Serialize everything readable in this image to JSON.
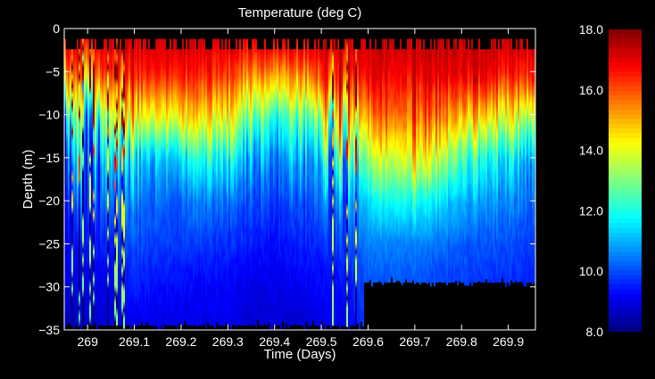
{
  "chart_data": {
    "type": "heatmap",
    "title": "Temperature (deg C)",
    "xlabel": "Time (Days)",
    "ylabel": "Depth (m)",
    "xlim": [
      268.95,
      269.958
    ],
    "ylim": [
      -35,
      0
    ],
    "xticks": [
      "269",
      "269.1",
      "269.2",
      "269.3",
      "269.4",
      "269.5",
      "269.6",
      "269.7",
      "269.8",
      "269.9"
    ],
    "xtick_values": [
      269,
      269.1,
      269.2,
      269.3,
      269.4,
      269.5,
      269.6,
      269.7,
      269.8,
      269.9
    ],
    "yticks": [
      "0",
      "-5",
      "-10",
      "-15",
      "-20",
      "-25",
      "-30",
      "-35"
    ],
    "ytick_values": [
      0,
      -5,
      -10,
      -15,
      -20,
      -25,
      -30,
      -35
    ],
    "colorbar": {
      "colormap": "jet",
      "range": [
        8.0,
        18.0
      ],
      "tick_labels": [
        "18.0",
        "16.0",
        "14.0",
        "12.0",
        "10.0",
        "8.0"
      ],
      "tick_values": [
        18,
        16,
        14,
        12,
        10,
        8
      ]
    },
    "depths": [
      0,
      -5,
      -10,
      -15,
      -20,
      -25,
      -30,
      -35
    ],
    "times": [
      268.95,
      269.0,
      269.05,
      269.1,
      269.15,
      269.2,
      269.25,
      269.3,
      269.35,
      269.4,
      269.45,
      269.5,
      269.55,
      269.6,
      269.65,
      269.7,
      269.75,
      269.8,
      269.85,
      269.9,
      269.95
    ],
    "values": [
      [
        17.5,
        15.5,
        12.0,
        10.0,
        9.5,
        9.0,
        8.8,
        8.5
      ],
      [
        17.5,
        15.0,
        11.5,
        10.5,
        10.0,
        9.5,
        9.0,
        8.8
      ],
      [
        17.5,
        16.0,
        13.0,
        10.5,
        10.0,
        9.5,
        9.0,
        8.8
      ],
      [
        17.5,
        16.5,
        14.5,
        11.5,
        10.5,
        10.0,
        9.5,
        9.0
      ],
      [
        17.5,
        16.5,
        14.0,
        11.0,
        10.2,
        9.8,
        9.3,
        9.0
      ],
      [
        17.5,
        16.5,
        14.5,
        11.5,
        10.2,
        9.8,
        9.3,
        9.0
      ],
      [
        17.5,
        16.5,
        14.5,
        12.0,
        10.5,
        9.8,
        9.2,
        9.0
      ],
      [
        17.5,
        16.0,
        14.0,
        11.5,
        10.2,
        9.6,
        9.2,
        9.0
      ],
      [
        17.5,
        15.5,
        13.0,
        11.0,
        10.0,
        9.5,
        9.0,
        8.8
      ],
      [
        17.5,
        15.0,
        12.0,
        10.5,
        9.8,
        9.3,
        9.0,
        8.8
      ],
      [
        17.5,
        15.2,
        12.5,
        10.8,
        10.0,
        9.5,
        9.1,
        8.8
      ],
      [
        17.5,
        16.0,
        13.0,
        11.0,
        10.2,
        9.6,
        9.2,
        9.0
      ],
      [
        17.5,
        16.5,
        14.5,
        12.0,
        10.5,
        9.8,
        9.3,
        9.0
      ],
      [
        17.5,
        17.0,
        15.5,
        13.5,
        11.5,
        10.5,
        10.0,
        10.0
      ],
      [
        17.5,
        17.0,
        16.0,
        14.0,
        12.0,
        10.5,
        10.0,
        10.0
      ],
      [
        17.5,
        17.0,
        16.0,
        14.5,
        12.0,
        10.5,
        10.0,
        10.0
      ],
      [
        17.5,
        17.0,
        15.5,
        13.5,
        11.5,
        10.3,
        9.8,
        9.8
      ],
      [
        17.5,
        17.0,
        15.0,
        12.5,
        11.0,
        10.2,
        9.8,
        9.8
      ],
      [
        17.5,
        17.0,
        14.5,
        12.0,
        10.8,
        10.0,
        9.7,
        9.7
      ],
      [
        17.5,
        16.5,
        14.0,
        11.5,
        10.5,
        10.0,
        9.6,
        9.6
      ],
      [
        17.5,
        16.5,
        13.5,
        11.0,
        10.3,
        9.8,
        9.5,
        9.5
      ]
    ],
    "data_bottom_depth": [
      {
        "until_time": 269.59,
        "depth": -34.5
      },
      {
        "until_time": 269.958,
        "depth": -29.5
      }
    ]
  }
}
